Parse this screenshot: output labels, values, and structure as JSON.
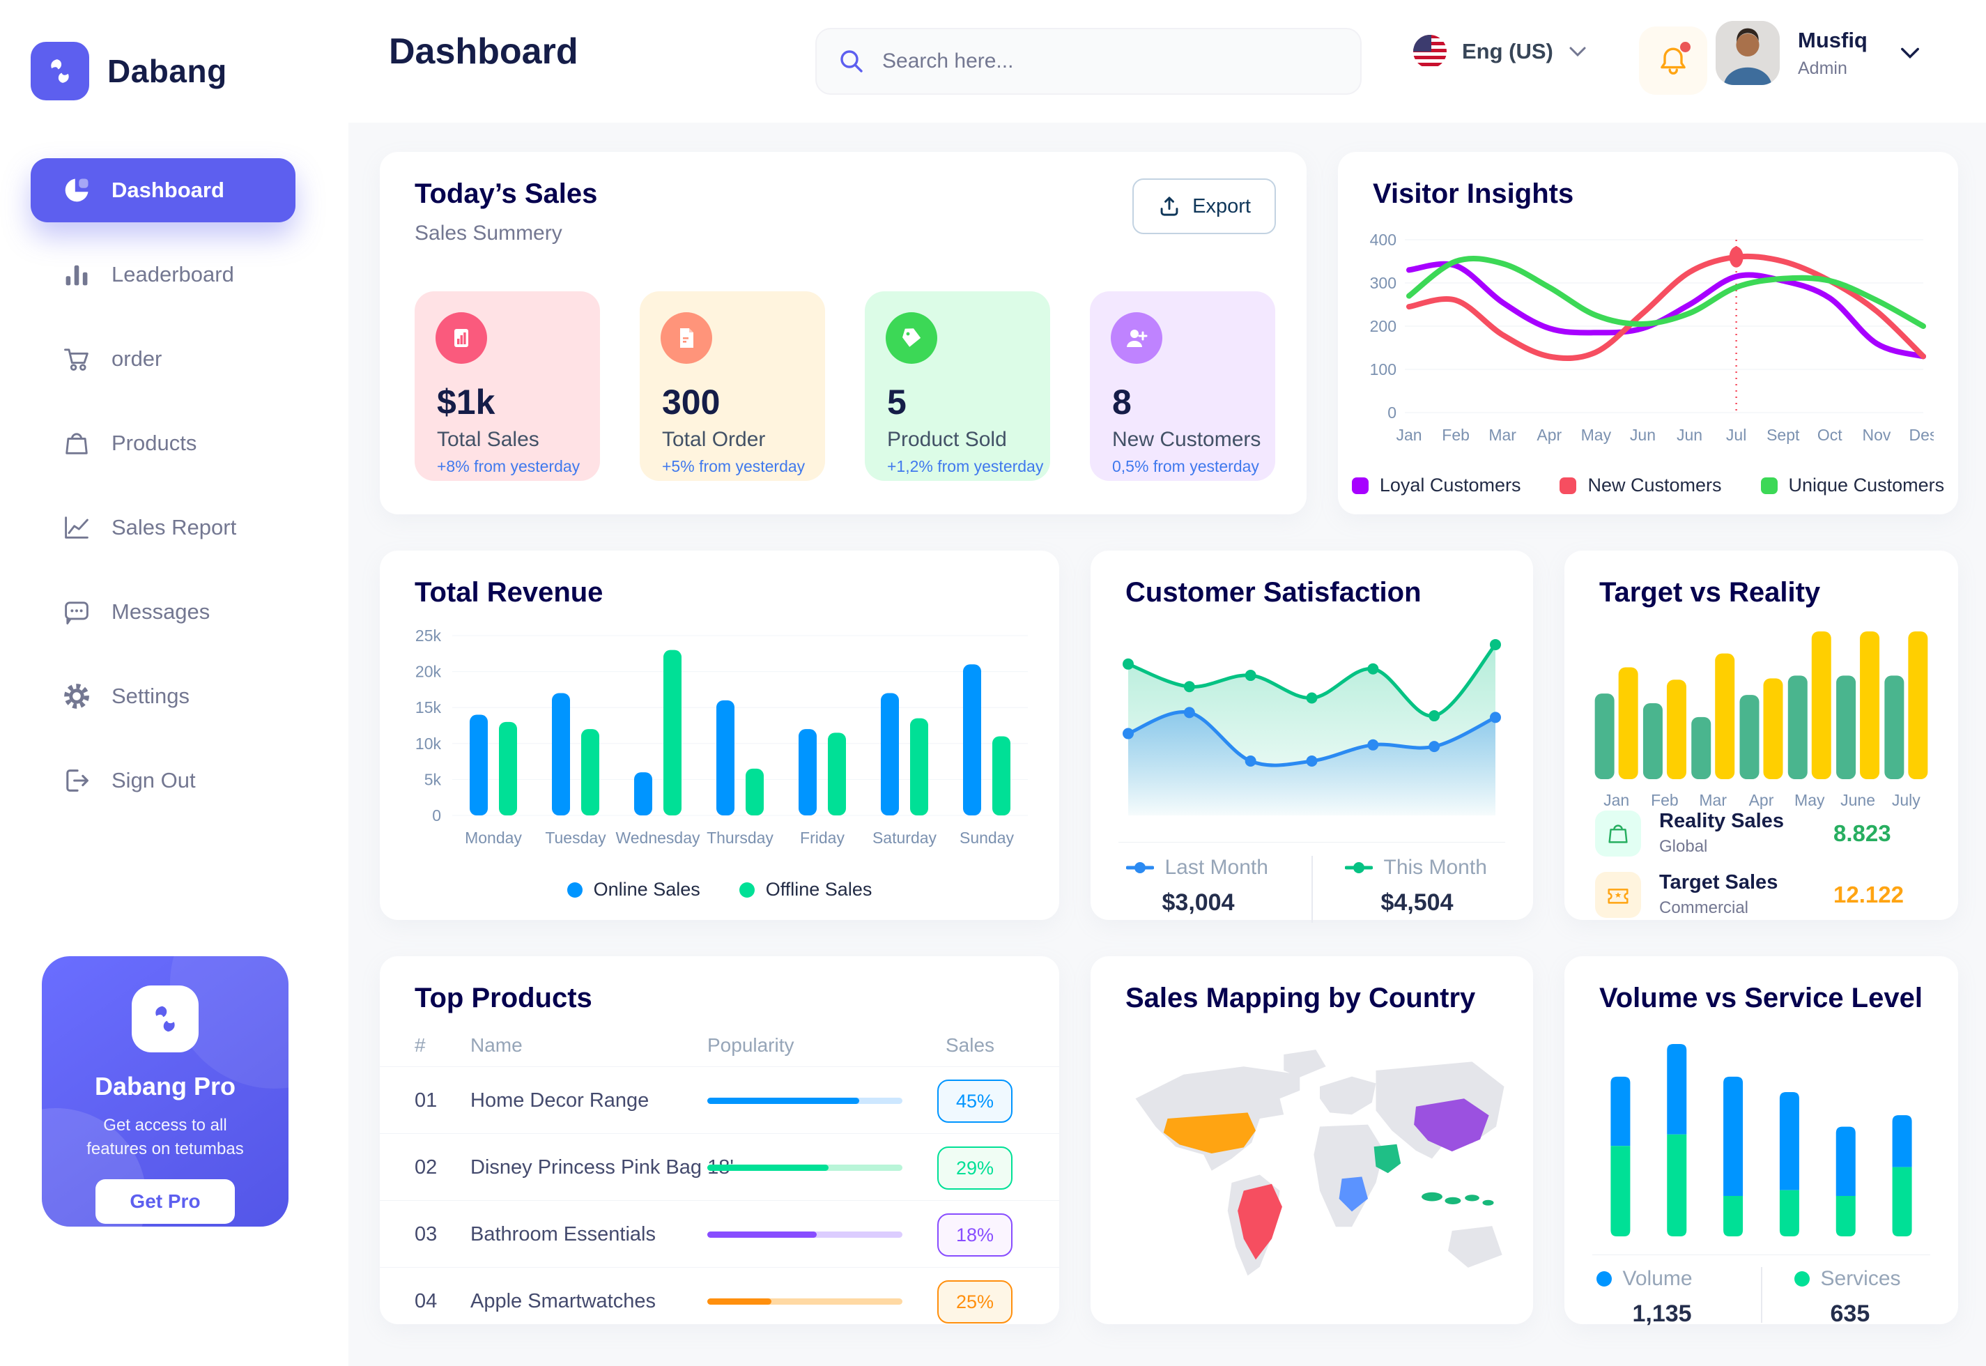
{
  "app": {
    "brand": "Dabang"
  },
  "header": {
    "page_title": "Dashboard",
    "search_placeholder": "Search here...",
    "language": "Eng (US)",
    "user": {
      "name": "Musfiq",
      "role": "Admin"
    }
  },
  "sidebar": {
    "items": [
      {
        "label": "Dashboard",
        "icon": "pie-chart-icon",
        "active": true
      },
      {
        "label": "Leaderboard",
        "icon": "bar-chart-icon",
        "active": false
      },
      {
        "label": "order",
        "icon": "cart-icon",
        "active": false
      },
      {
        "label": "Products",
        "icon": "bag-icon",
        "active": false
      },
      {
        "label": "Sales Report",
        "icon": "line-chart-icon",
        "active": false
      },
      {
        "label": "Messages",
        "icon": "message-icon",
        "active": false
      },
      {
        "label": "Settings",
        "icon": "gear-icon",
        "active": false
      },
      {
        "label": "Sign Out",
        "icon": "sign-out-icon",
        "active": false
      }
    ],
    "pro_card": {
      "title": "Dabang Pro",
      "description": "Get access to all features on tetumbas",
      "button": "Get Pro"
    }
  },
  "today_sales": {
    "title": "Today’s Sales",
    "subtitle": "Sales Summery",
    "export_label": "Export",
    "cards": [
      {
        "value": "$1k",
        "label": "Total Sales",
        "change": "+8% from yesterday",
        "bg": "#FFE2E5",
        "icon_bg": "#FA5A7D",
        "icon": "stats-icon"
      },
      {
        "value": "300",
        "label": "Total Order",
        "change": "+5% from yesterday",
        "bg": "#FFF4DE",
        "icon_bg": "#FF947A",
        "icon": "orders-icon"
      },
      {
        "value": "5",
        "label": "Product Sold",
        "change": "+1,2% from yesterday",
        "bg": "#DCFCE7",
        "icon_bg": "#3CD856",
        "icon": "tag-icon"
      },
      {
        "value": "8",
        "label": "New Customers",
        "change": "0,5% from yesterday",
        "bg": "#F3E8FF",
        "icon_bg": "#BF83FF",
        "icon": "new-user-icon"
      }
    ]
  },
  "chart_data": [
    {
      "id": "visitor_insights",
      "type": "line",
      "title": "Visitor Insights",
      "x_labels": [
        "Jan",
        "Feb",
        "Mar",
        "Apr",
        "May",
        "Jun",
        "Jun",
        "Jul",
        "Sept",
        "Oct",
        "Nov",
        "Des"
      ],
      "yticks": [
        0,
        100,
        200,
        300,
        400
      ],
      "ylim": [
        0,
        400
      ],
      "grid": true,
      "legend_position": "bottom",
      "series": [
        {
          "name": "Loyal Customers",
          "color": "#A700FF",
          "values": [
            330,
            340,
            255,
            195,
            185,
            195,
            250,
            315,
            305,
            265,
            160,
            130
          ]
        },
        {
          "name": "New Customers",
          "color": "#F64E60",
          "values": [
            245,
            260,
            180,
            130,
            140,
            230,
            325,
            360,
            350,
            305,
            235,
            130
          ]
        },
        {
          "name": "Unique Customers",
          "color": "#3CD856",
          "values": [
            270,
            350,
            345,
            290,
            225,
            205,
            230,
            290,
            310,
            305,
            260,
            200
          ]
        }
      ],
      "marker": {
        "x_index": 7,
        "value": 360,
        "color": "#F64E60"
      }
    },
    {
      "id": "total_revenue",
      "type": "bar",
      "title": "Total Revenue",
      "categories": [
        "Monday",
        "Tuesday",
        "Wednesday",
        "Thursday",
        "Friday",
        "Saturday",
        "Sunday"
      ],
      "ytick_labels": [
        "0",
        "5k",
        "10k",
        "15k",
        "20k",
        "25k"
      ],
      "yticks": [
        0,
        5000,
        10000,
        15000,
        20000,
        25000
      ],
      "ylim": [
        0,
        25000
      ],
      "grid": true,
      "legend_position": "bottom",
      "series": [
        {
          "name": "Online Sales",
          "color": "#0095FF",
          "values": [
            14000,
            17000,
            6000,
            16000,
            12000,
            17000,
            21000
          ]
        },
        {
          "name": "Offline Sales",
          "color": "#00E096",
          "values": [
            13000,
            12000,
            23000,
            6500,
            11500,
            13500,
            11000
          ]
        }
      ]
    },
    {
      "id": "customer_satisfaction",
      "type": "area",
      "title": "Customer Satisfaction",
      "ylim": [
        0,
        100
      ],
      "legend_position": "bottom",
      "series": [
        {
          "name": "Last Month",
          "total": "$3,004",
          "color": "#2B8AF2",
          "values": [
            42,
            55,
            25,
            25,
            35,
            34,
            52
          ]
        },
        {
          "name": "This Month",
          "total": "$4,504",
          "color": "#05C283",
          "values": [
            85,
            71,
            78,
            64,
            82,
            53,
            97
          ]
        }
      ]
    },
    {
      "id": "target_vs_reality",
      "type": "bar",
      "title": "Target vs Reality",
      "categories": [
        "Jan",
        "Feb",
        "Mar",
        "Apr",
        "May",
        "June",
        "July"
      ],
      "ylim": [
        0,
        11
      ],
      "legend_position": "bottom",
      "series": [
        {
          "name": "Reality Sales",
          "scope": "Global",
          "summary": "8.823",
          "color": "#4AB58E",
          "value_color": "#27AE60",
          "tile_bg": "#E2FFF3",
          "icon": "bag-icon",
          "values": [
            6.2,
            5.5,
            4.5,
            6.1,
            7.5,
            7.5,
            7.5
          ]
        },
        {
          "name": "Target Sales",
          "scope": "Commercial",
          "summary": "12.122",
          "color": "#FFCF00",
          "value_color": "#FFA412",
          "tile_bg": "#FFF4DE",
          "icon": "ticket-icon",
          "values": [
            8.1,
            7.2,
            9.1,
            7.3,
            10.7,
            10.7,
            10.7
          ]
        }
      ]
    },
    {
      "id": "volume_vs_service",
      "type": "stacked-bar",
      "title": "Volume vs Service Level",
      "ylim": [
        0,
        100
      ],
      "legend_position": "bottom",
      "series": [
        {
          "name": "Volume",
          "total": "1,135",
          "color": "#0095FF",
          "values": [
            36,
            47,
            62,
            51,
            36,
            27
          ]
        },
        {
          "name": "Services",
          "total": "635",
          "color": "#00E096",
          "values": [
            47,
            53,
            21,
            24,
            21,
            36
          ]
        }
      ]
    }
  ],
  "top_products": {
    "title": "Top Products",
    "headers": [
      "#",
      "Name",
      "Popularity",
      "Sales"
    ],
    "rows": [
      {
        "num": "01",
        "name": "Home Decor Range",
        "popularity": 78,
        "sales": "45%",
        "color": "#0095FF",
        "track": "#CDE7FF",
        "badge_bg": "#F0F9FF"
      },
      {
        "num": "02",
        "name": "Disney Princess Pink Bag 18'",
        "popularity": 62,
        "sales": "29%",
        "color": "#00E096",
        "track": "#B9F5D8",
        "badge_bg": "#F0FDF4"
      },
      {
        "num": "03",
        "name": "Bathroom Essentials",
        "popularity": 56,
        "sales": "18%",
        "color": "#884DFF",
        "track": "#DCCDFF",
        "badge_bg": "#FBF5FF"
      },
      {
        "num": "04",
        "name": "Apple Smartwatches",
        "popularity": 33,
        "sales": "25%",
        "color": "#FF8F0D",
        "track": "#FFD9A3",
        "badge_bg": "#FEF6E6"
      }
    ]
  },
  "sales_map": {
    "title": "Sales Mapping by Country",
    "countries": [
      {
        "name": "United States",
        "color": "#FFA412"
      },
      {
        "name": "Brazil",
        "color": "#F64E60"
      },
      {
        "name": "DR Congo",
        "color": "#5B93FF"
      },
      {
        "name": "Saudi Arabia",
        "color": "#1FBF86"
      },
      {
        "name": "China",
        "color": "#9B51E0"
      },
      {
        "name": "Indonesia",
        "color": "#18B87A"
      }
    ]
  },
  "theme": {
    "primary": "#5D5FEF",
    "heading": "#05004E",
    "muted": "#737791",
    "axis": "#7B91B0",
    "blue_text": "#4079ED",
    "map_land": "#E4E5EA"
  }
}
